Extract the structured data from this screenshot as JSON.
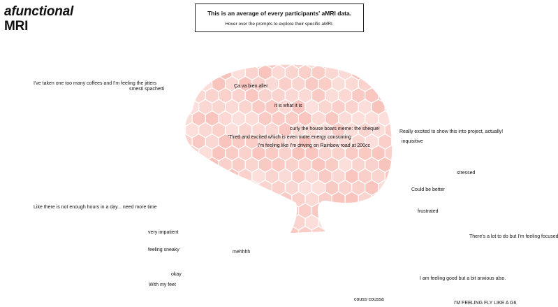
{
  "title": {
    "line1": "afunctional",
    "line2": "MRI"
  },
  "info": {
    "heading": "This is an average of every participants' aMRI data.",
    "subtext": "Hover over the prompts to explore their specific aMRI."
  },
  "brain": {
    "base_color": "#f5a59a"
  },
  "prompts": [
    "I've taken one too many coffees and I'm feeling the jitters",
    "smesti spachetti",
    "Ça va bien aller",
    "it is what it is",
    "curly the house boars meme: the sheque!",
    "\"Tired and excited which is even more energy consuming",
    "I'm feeling like I'm driving on Rainbow road at 200cc",
    "Really excited to show this into project, actually!",
    "inquisitive",
    "stressed",
    "Could be better",
    "frustrated",
    "Like there is not enough hours in a day... need more time",
    "very impatient",
    "feeling sneaky",
    "mehhhh",
    "There's a lot to do but I'm feeling focused",
    "okay",
    "With my feet",
    "I am feeling good but a bit anxious also.",
    "couss-coussa",
    "I'M FEELING FLY LIKE A G6"
  ]
}
